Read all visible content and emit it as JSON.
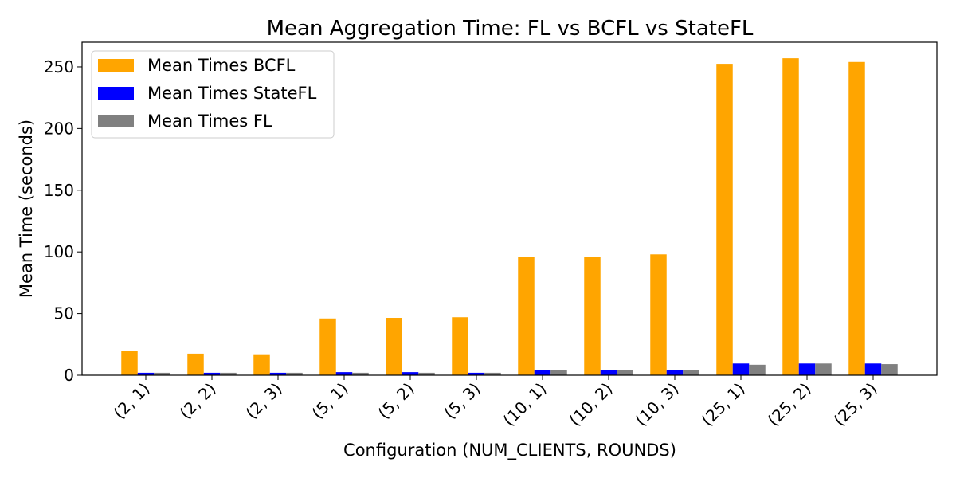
{
  "chart_data": {
    "type": "bar",
    "title": "Mean Aggregation Time: FL vs BCFL vs StateFL",
    "xlabel": "Configuration (NUM_CLIENTS, ROUNDS)",
    "ylabel": "Mean Time (seconds)",
    "categories": [
      "(2, 1)",
      "(2, 2)",
      "(2, 3)",
      "(5, 1)",
      "(5, 2)",
      "(5, 3)",
      "(10, 1)",
      "(10, 2)",
      "(10, 3)",
      "(25, 1)",
      "(25, 2)",
      "(25, 3)"
    ],
    "series": [
      {
        "name": "Mean Times BCFL",
        "color": "#ffa500",
        "values": [
          20,
          17.5,
          17,
          46,
          46.5,
          47,
          96,
          96,
          98,
          252.5,
          257,
          254
        ]
      },
      {
        "name": "Mean Times StateFL",
        "color": "#0000ff",
        "values": [
          2,
          2,
          2,
          2.5,
          2.5,
          2,
          4,
          4,
          4,
          9.5,
          9.5,
          9.5
        ]
      },
      {
        "name": "Mean Times FL",
        "color": "#808080",
        "values": [
          2,
          2,
          2,
          2,
          2,
          2,
          4,
          4,
          4,
          8.5,
          9.5,
          9
        ]
      }
    ],
    "yticks": [
      0,
      50,
      100,
      150,
      200,
      250
    ],
    "ylim": [
      0,
      270
    ],
    "legend_position": "top-left",
    "grid": false
  }
}
